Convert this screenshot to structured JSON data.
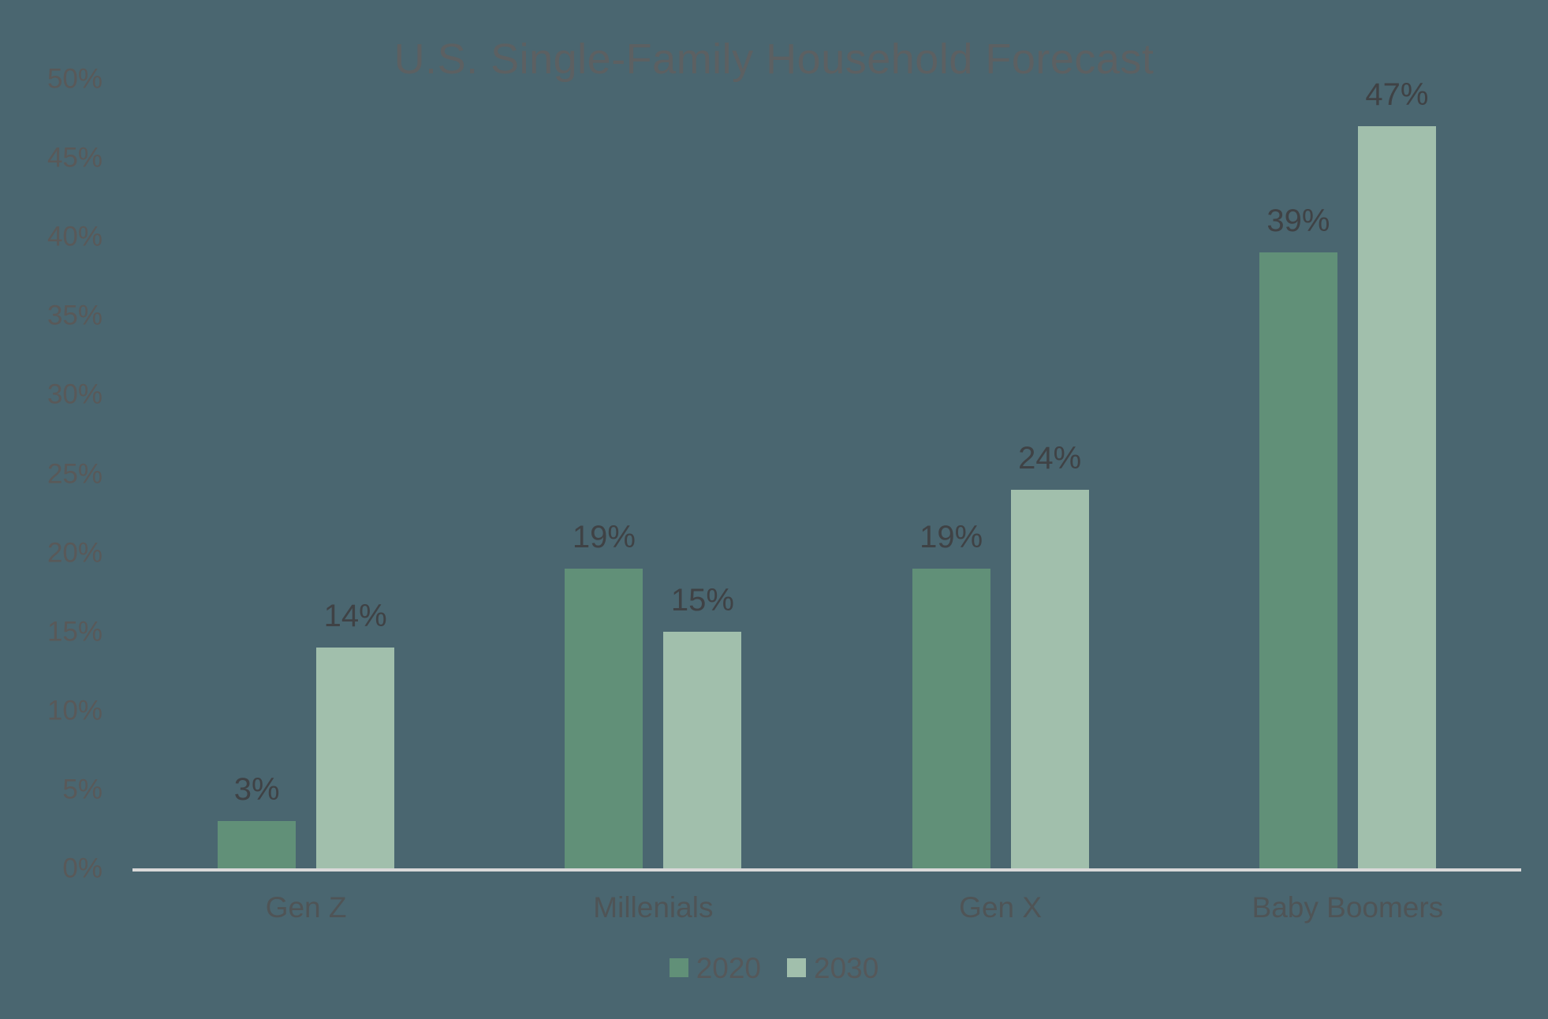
{
  "chart_data": {
    "type": "bar",
    "title": "U.S. Single-Family Household Forecast",
    "categories": [
      "Gen Z",
      "Millenials",
      "Gen X",
      "Baby Boomers"
    ],
    "series": [
      {
        "name": "2020",
        "values": [
          3,
          19,
          19,
          39
        ],
        "labels": [
          "3%",
          "19%",
          "19%",
          "39%"
        ],
        "color": "#619078"
      },
      {
        "name": "2030",
        "values": [
          14,
          15,
          24,
          47
        ],
        "labels": [
          "14%",
          "15%",
          "24%",
          "47%"
        ],
        "color": "#A1BFAC"
      }
    ],
    "xlabel": "",
    "ylabel": "",
    "ylim": [
      0,
      50
    ],
    "ytick_step": 5,
    "ytick_suffix": "%",
    "ytick_labels": [
      "0%",
      "5%",
      "10%",
      "15%",
      "20%",
      "25%",
      "30%",
      "35%",
      "40%",
      "45%",
      "50%"
    ],
    "grid": false,
    "legend_position": "bottom"
  },
  "legend": {
    "items": [
      {
        "label": "2020",
        "color": "#619078"
      },
      {
        "label": "2030",
        "color": "#A1BFAC"
      }
    ]
  },
  "colors": {
    "background": "#4A6670",
    "series_2020": "#619078",
    "series_2030": "#A1BFAC",
    "axis_line": "#D9D9D9",
    "title_text": "#5C6062",
    "tick_label_text": "#595959",
    "category_label_text": "#4F5456",
    "data_label_text": "#3F4245",
    "legend_text": "#55585A"
  }
}
